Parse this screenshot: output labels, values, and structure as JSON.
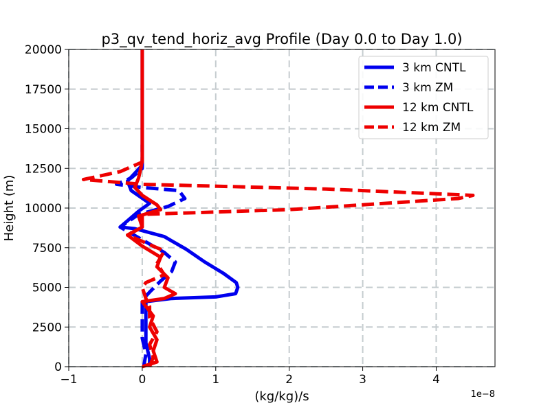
{
  "chart_data": {
    "type": "line",
    "title": "p3_qv_tend_horiz_avg Profile (Day 0.0 to Day 1.0)",
    "xlabel": "(kg/kg)/s",
    "ylabel": "Height (m)",
    "x_offset_label": "1e−8",
    "xlim": [
      -1e-08,
      4.8e-08
    ],
    "ylim": [
      0,
      20000
    ],
    "x_ticks": [
      -1e-08,
      0,
      1e-08,
      2e-08,
      3e-08,
      4e-08
    ],
    "x_tick_labels": [
      "−1",
      "0",
      "1",
      "2",
      "3",
      "4"
    ],
    "y_ticks": [
      0,
      2500,
      5000,
      7500,
      10000,
      12500,
      15000,
      17500,
      20000
    ],
    "y_tick_labels": [
      "0",
      "2500",
      "5000",
      "7500",
      "10000",
      "12500",
      "15000",
      "17500",
      "20000"
    ],
    "grid": true,
    "legend_position": "top-right",
    "series": [
      {
        "name": "3 km CNTL",
        "color": "#0000ee",
        "dashed": false,
        "points": [
          [
            1e-09,
            0
          ],
          [
            1e-09,
            500
          ],
          [
            5e-10,
            1500
          ],
          [
            5e-10,
            2500
          ],
          [
            5e-10,
            3500
          ],
          [
            5e-10,
            4100
          ],
          [
            4e-09,
            4300
          ],
          [
            1e-08,
            4400
          ],
          [
            1.27e-08,
            4600
          ],
          [
            1.3e-08,
            5000
          ],
          [
            1.28e-08,
            5300
          ],
          [
            1.1e-08,
            5900
          ],
          [
            8.5e-09,
            6600
          ],
          [
            6e-09,
            7400
          ],
          [
            3e-09,
            8200
          ],
          [
            -1e-09,
            8700
          ],
          [
            -3e-09,
            8800
          ],
          [
            -2e-09,
            9200
          ],
          [
            -5e-10,
            9800
          ],
          [
            1e-09,
            10300
          ],
          [
            -1.5e-09,
            11100
          ],
          [
            -2e-09,
            11700
          ],
          [
            -1e-09,
            12200
          ],
          [
            0.0,
            12700
          ],
          [
            0.0,
            13300
          ],
          [
            0.0,
            14000
          ],
          [
            0.0,
            15000
          ],
          [
            0.0,
            16000
          ],
          [
            0.0,
            17000
          ],
          [
            0.0,
            18000
          ],
          [
            0.0,
            19000
          ],
          [
            0.0,
            20000
          ]
        ]
      },
      {
        "name": "3 km ZM",
        "color": "#0000ee",
        "dashed": true,
        "points": [
          [
            2e-10,
            0
          ],
          [
            5e-10,
            800
          ],
          [
            0.0,
            1800
          ],
          [
            0.0,
            2800
          ],
          [
            0.0,
            3700
          ],
          [
            0.0,
            4200
          ],
          [
            1e-09,
            4700
          ],
          [
            2.5e-09,
            5400
          ],
          [
            4e-09,
            6000
          ],
          [
            4.5e-09,
            6600
          ],
          [
            3e-09,
            7200
          ],
          [
            0.0,
            8000
          ],
          [
            -3e-09,
            8800
          ],
          [
            -5e-10,
            9600
          ],
          [
            3.5e-09,
            10100
          ],
          [
            5.8e-09,
            10600
          ],
          [
            5e-09,
            11100
          ],
          [
            0.0,
            11300
          ],
          [
            -3.5e-09,
            11500
          ],
          [
            -1.5e-09,
            11900
          ],
          [
            0.0,
            12500
          ],
          [
            0.0,
            13300
          ],
          [
            0.0,
            14000
          ]
        ]
      },
      {
        "name": "12 km CNTL",
        "color": "#ee0000",
        "dashed": false,
        "points": [
          [
            0.0,
            0
          ],
          [
            2e-09,
            300
          ],
          [
            1.5e-09,
            1000
          ],
          [
            2e-09,
            1700
          ],
          [
            1e-09,
            2500
          ],
          [
            1.5e-09,
            3200
          ],
          [
            0.0,
            4100
          ],
          [
            3e-09,
            4300
          ],
          [
            4.5e-09,
            4600
          ],
          [
            3e-09,
            5000
          ],
          [
            3.5e-09,
            5600
          ],
          [
            2e-09,
            6300
          ],
          [
            2.5e-09,
            6900
          ],
          [
            0.0,
            7600
          ],
          [
            -2e-09,
            8300
          ],
          [
            0.0,
            8800
          ],
          [
            -5e-10,
            9500
          ],
          [
            2.5e-09,
            9900
          ],
          [
            2e-09,
            10200
          ],
          [
            0.0,
            10800
          ],
          [
            -1e-09,
            11300
          ],
          [
            -5e-10,
            11900
          ],
          [
            -2e-10,
            12500
          ],
          [
            0.0,
            13000
          ],
          [
            0.0,
            14000
          ],
          [
            0.0,
            15000
          ],
          [
            0.0,
            16000
          ],
          [
            0.0,
            17000
          ],
          [
            0.0,
            18000
          ],
          [
            0.0,
            19000
          ],
          [
            0.0,
            20000
          ]
        ]
      },
      {
        "name": "12 km ZM",
        "color": "#ee0000",
        "dashed": true,
        "points": [
          [
            1e-09,
            0
          ],
          [
            1.5e-09,
            600
          ],
          [
            1e-09,
            1400
          ],
          [
            2e-09,
            2200
          ],
          [
            1e-09,
            3100
          ],
          [
            1e-09,
            3800
          ],
          [
            5e-10,
            4300
          ],
          [
            0.0,
            5000
          ],
          [
            5e-10,
            5300
          ],
          [
            3e-09,
            5800
          ],
          [
            2e-09,
            6500
          ],
          [
            3e-09,
            7300
          ],
          [
            0.0,
            7900
          ],
          [
            -2e-09,
            8300
          ],
          [
            0.0,
            8800
          ],
          [
            0.0,
            9600
          ],
          [
            2e-08,
            9900
          ],
          [
            4.3e-08,
            10600
          ],
          [
            4.5e-08,
            10800
          ],
          [
            2.5e-08,
            11200
          ],
          [
            0.0,
            11500
          ],
          [
            -8e-09,
            11800
          ],
          [
            -3e-09,
            12300
          ],
          [
            0.0,
            12900
          ],
          [
            0.0,
            13400
          ]
        ]
      }
    ]
  }
}
